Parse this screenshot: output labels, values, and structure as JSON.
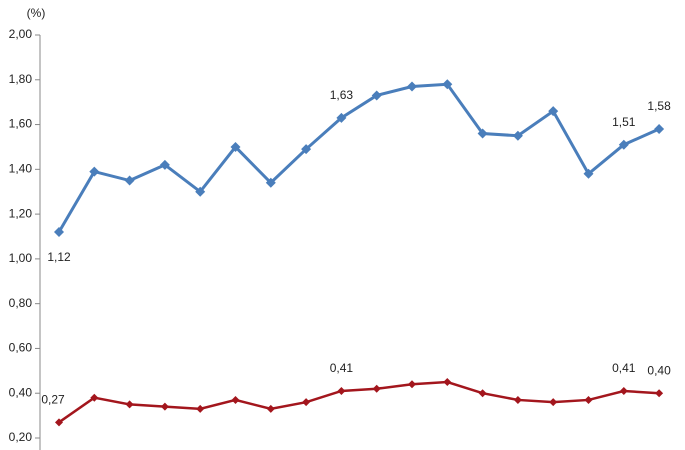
{
  "chart_data": {
    "type": "line",
    "unit_label": "(%)",
    "categories": [
      null,
      null,
      null,
      null,
      null,
      null,
      null,
      null,
      null,
      null,
      null,
      null,
      null,
      null,
      null,
      null,
      null,
      null
    ],
    "series": [
      {
        "color": "#4a7ebb",
        "values": [
          1.12,
          1.39,
          1.35,
          1.42,
          1.3,
          1.5,
          1.34,
          1.49,
          1.63,
          1.73,
          1.77,
          1.78,
          1.56,
          1.55,
          1.66,
          1.38,
          1.51,
          1.58
        ],
        "value_labels": [
          "1,12",
          null,
          null,
          null,
          null,
          null,
          null,
          null,
          "1,63",
          null,
          null,
          null,
          null,
          null,
          null,
          null,
          "1,51",
          "1,58"
        ]
      },
      {
        "color": "#a3161d",
        "values": [
          0.27,
          0.38,
          0.35,
          0.34,
          0.33,
          0.37,
          0.33,
          0.36,
          0.41,
          0.42,
          0.44,
          0.45,
          0.4,
          0.37,
          0.36,
          0.37,
          0.41,
          0.4
        ],
        "value_labels": [
          "0,27",
          null,
          null,
          null,
          null,
          null,
          null,
          null,
          "0,41",
          null,
          null,
          null,
          null,
          null,
          null,
          null,
          "0,41",
          "0,40"
        ]
      }
    ],
    "ylim": [
      0.2,
      2.0
    ],
    "yticks": [
      {
        "value": 0.2,
        "label": "0,20"
      },
      {
        "value": 0.4,
        "label": "0,40"
      },
      {
        "value": 0.6,
        "label": "0,60"
      },
      {
        "value": 0.8,
        "label": "0,80"
      },
      {
        "value": 1.0,
        "label": "1,00"
      },
      {
        "value": 1.2,
        "label": "1,20"
      },
      {
        "value": 1.4,
        "label": "1,40"
      },
      {
        "value": 1.6,
        "label": "1,60"
      },
      {
        "value": 1.8,
        "label": "1,80"
      },
      {
        "value": 2.0,
        "label": "2,00"
      }
    ],
    "grid": false
  }
}
